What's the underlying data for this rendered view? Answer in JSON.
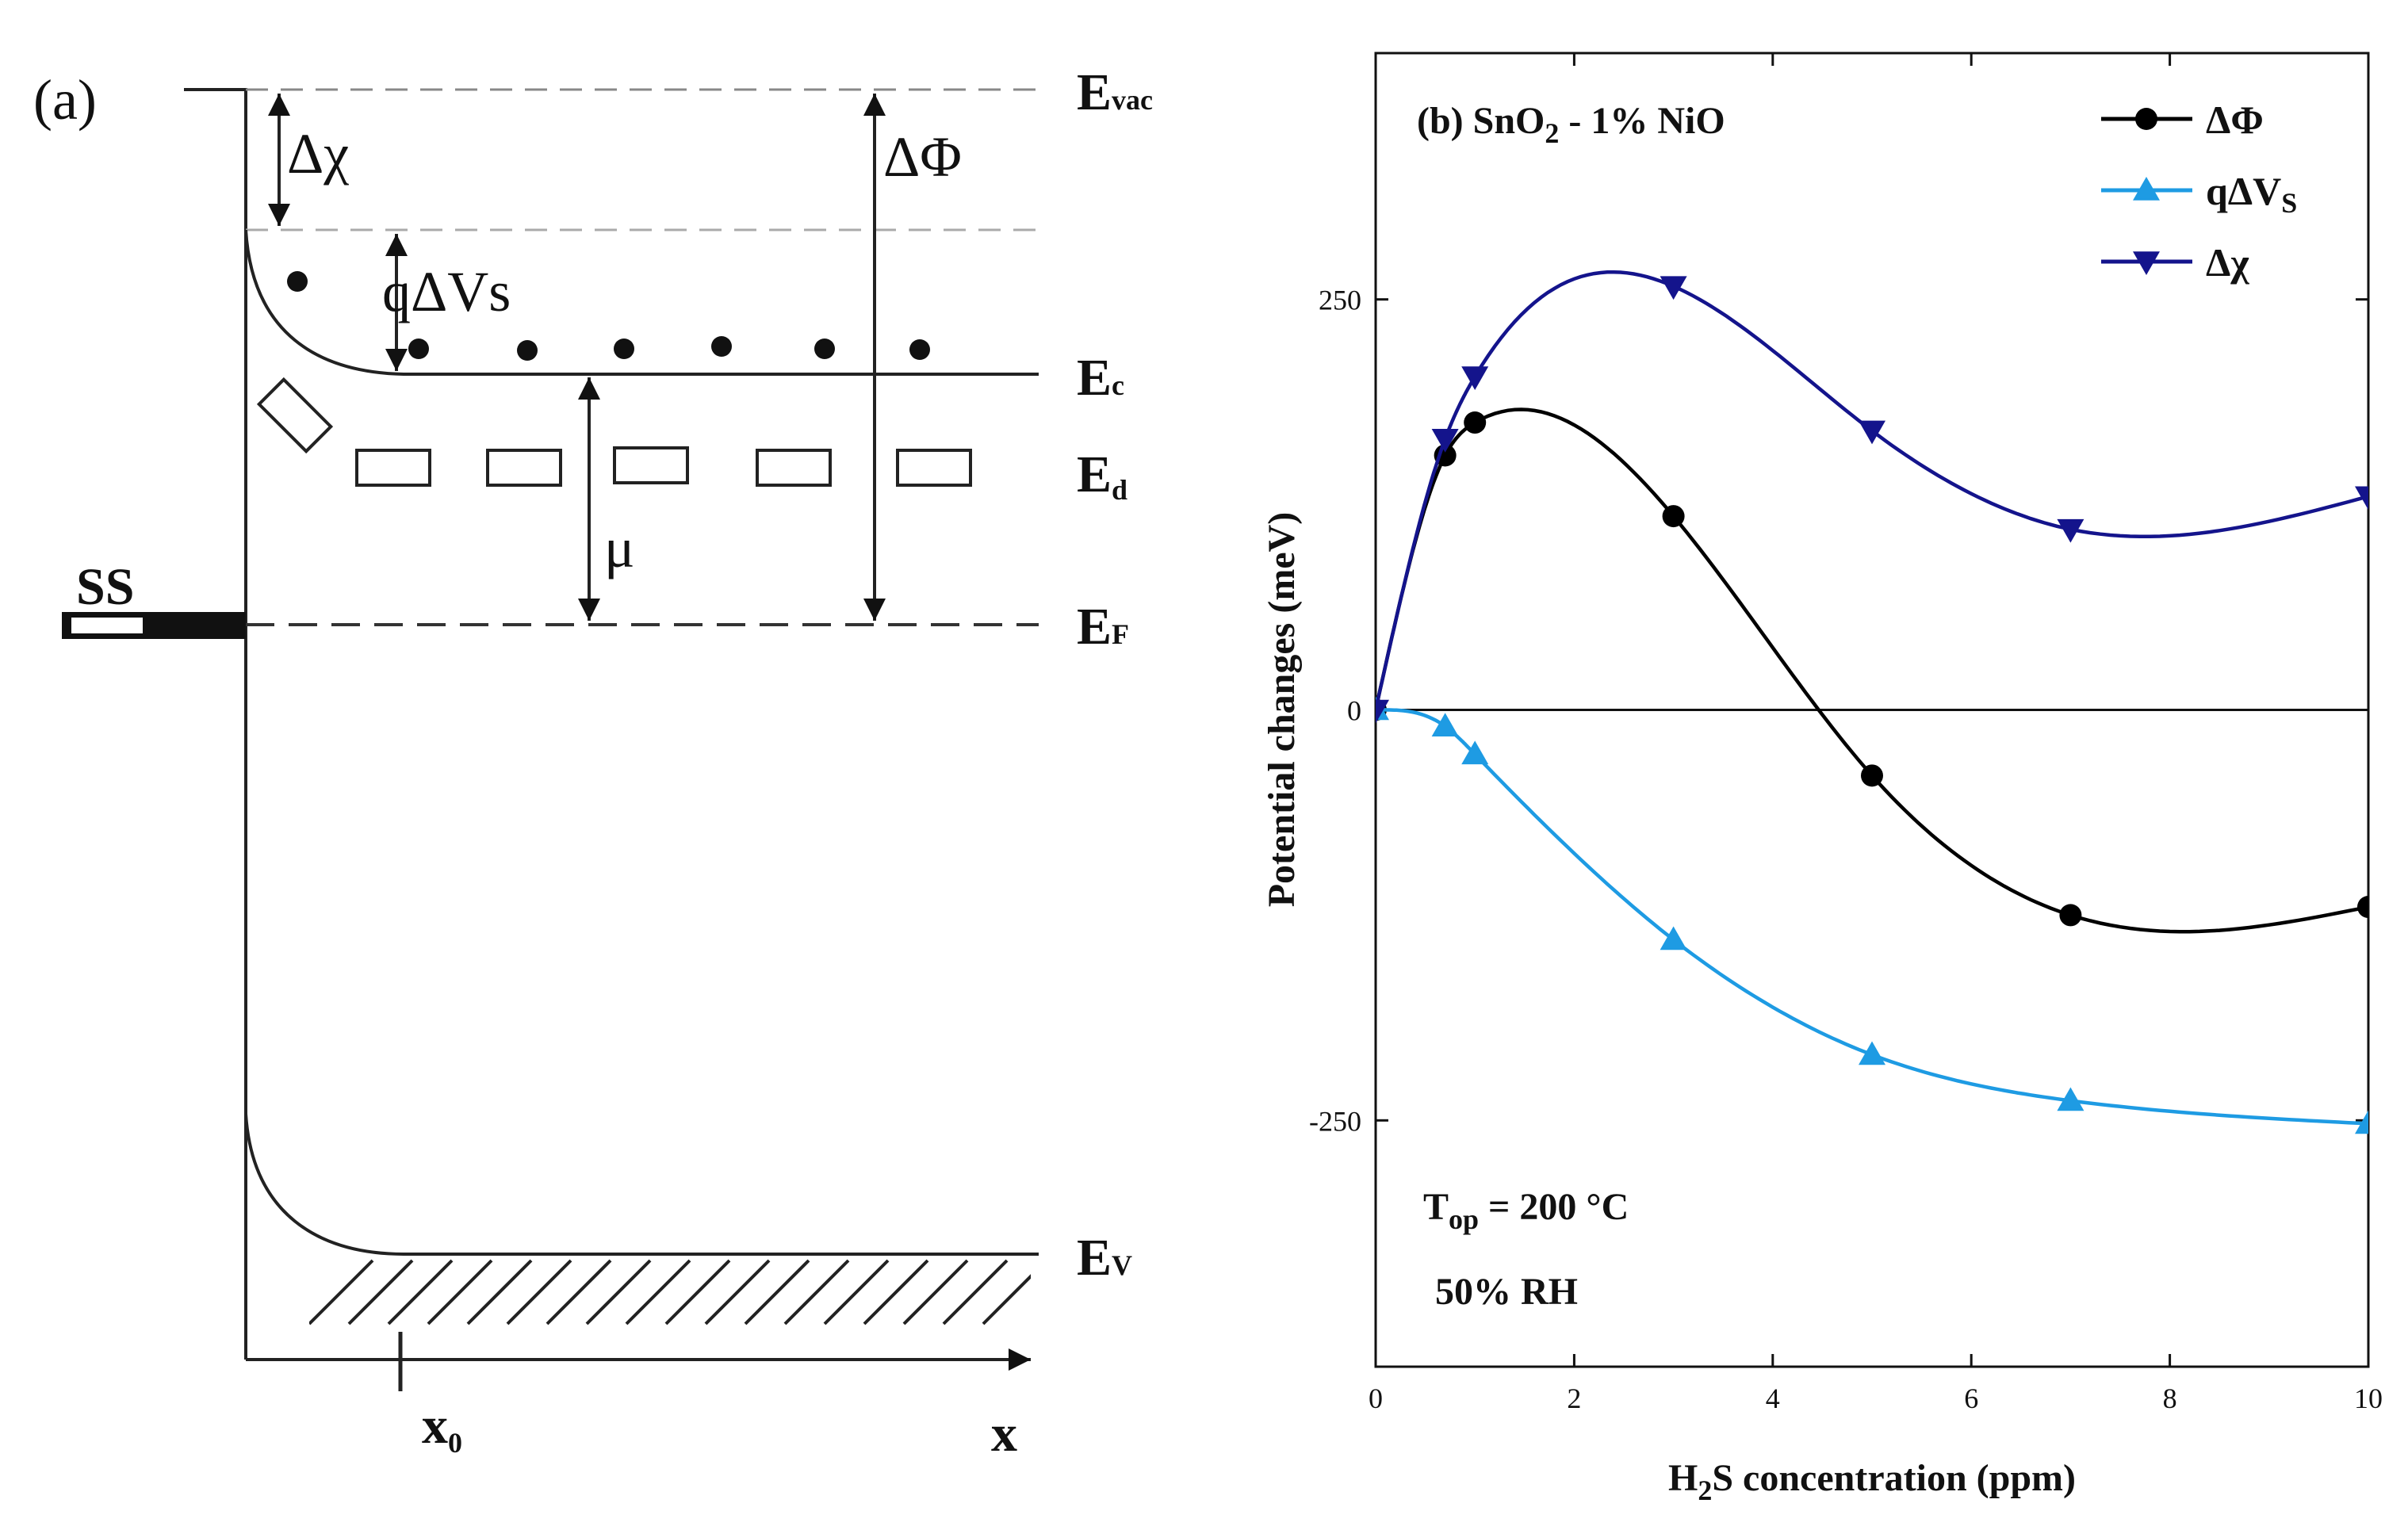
{
  "panel_a": {
    "label": "(a)",
    "levels": {
      "evac": {
        "main": "E",
        "sub": "vac"
      },
      "ec": {
        "main": "E",
        "sub": "c"
      },
      "ed": {
        "main": "E",
        "sub": "d"
      },
      "ef": {
        "main": "E",
        "sub": "F"
      },
      "ev": {
        "main": "E",
        "sub": "V"
      }
    },
    "symbols": {
      "delta_chi": "Δχ",
      "q_delta_vs": "qΔVs",
      "delta_phi": "ΔΦ",
      "mu": "μ",
      "ss": "SS",
      "x0_main": "x",
      "x0_sub": "0",
      "x_axis": "x"
    }
  },
  "chart_data": {
    "type": "line",
    "panel_label_prefix": "(b) SnO",
    "panel_label_sub": "2",
    "panel_label_suffix": " - 1% NiO",
    "xlabel_pre": "H",
    "xlabel_sub": "2",
    "xlabel_post": "S concentration (ppm)",
    "ylabel": "Potential changes (meV)",
    "xlim": [
      0,
      10
    ],
    "ylim": [
      -400,
      400
    ],
    "xticks": [
      0,
      2,
      4,
      6,
      8,
      10
    ],
    "xtick_labels": [
      "0",
      "2",
      "4",
      "6",
      "8",
      "10"
    ],
    "yticks": [
      -250,
      0,
      250
    ],
    "ytick_labels": [
      "-250",
      "0",
      "250"
    ],
    "series": [
      {
        "name": "ΔΦ",
        "color": "#000000",
        "marker": "circle",
        "x": [
          0,
          0.7,
          1,
          3,
          5,
          7,
          10
        ],
        "y": [
          0,
          155,
          175,
          118,
          -40,
          -125,
          -120
        ]
      },
      {
        "name_main": "qΔV",
        "name_sub": "S",
        "color": "#1e9be3",
        "marker": "triangle-up",
        "x": [
          0,
          0.7,
          1,
          3,
          5,
          7,
          10
        ],
        "y": [
          0,
          -10,
          -27,
          -140,
          -210,
          -238,
          -252
        ]
      },
      {
        "name": "Δχ",
        "color": "#14148c",
        "marker": "triangle-down",
        "x": [
          0,
          0.7,
          1,
          3,
          5,
          7,
          10
        ],
        "y": [
          0,
          165,
          203,
          258,
          170,
          110,
          130
        ]
      }
    ],
    "annotations": {
      "top_main": "T",
      "top_sub": "op",
      "top_rest": " = 200 °C",
      "rh": "50% RH"
    }
  }
}
